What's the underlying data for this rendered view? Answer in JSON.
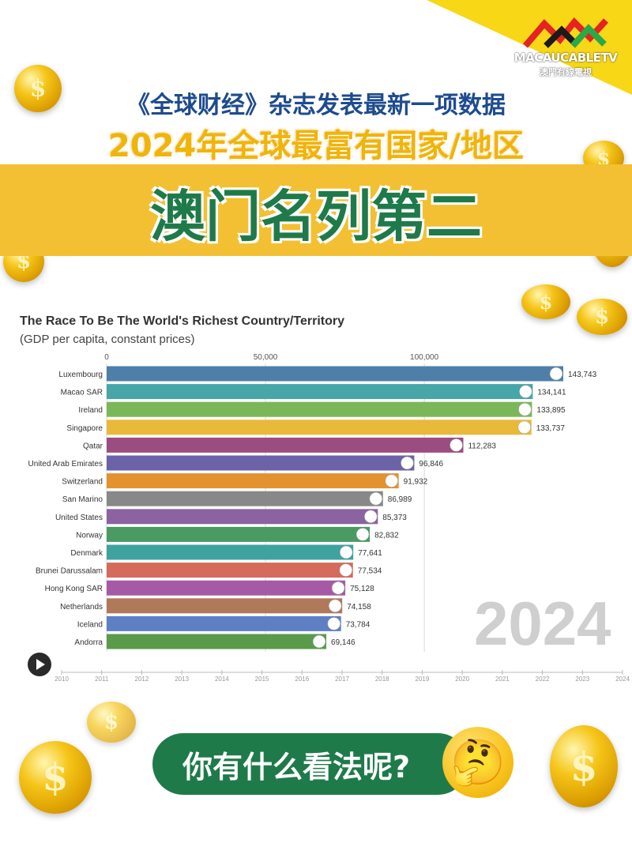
{
  "logo": {
    "brand": "MACAUCABLETV",
    "subtitle": "澳門有線電視",
    "colors": [
      "#e52322",
      "#1b1b1b",
      "#2aa84a"
    ]
  },
  "headline": {
    "line1": "《全球财经》杂志发表最新一项数据",
    "line2": "2024年全球最富有国家/地区",
    "line3": "澳门名列第二"
  },
  "chart_data": {
    "type": "bar",
    "orientation": "horizontal",
    "title": "The Race To Be The World's Richest Country/Territory",
    "subtitle": "(GDP per capita, constant prices)",
    "xlim": [
      0,
      150000
    ],
    "x_ticks": [
      "0",
      "50,000",
      "100,000"
    ],
    "x_tick_values": [
      0,
      50000,
      100000
    ],
    "grid": true,
    "categories": [
      "Luxembourg",
      "Macao SAR",
      "Ireland",
      "Singapore",
      "Qatar",
      "United Arab Emirates",
      "Switzerland",
      "San Marino",
      "United States",
      "Norway",
      "Denmark",
      "Brunei Darussalam",
      "Hong Kong SAR",
      "Netherlands",
      "Iceland",
      "Andorra"
    ],
    "values": [
      143743,
      134141,
      133895,
      133737,
      112283,
      96846,
      91932,
      86989,
      85373,
      82832,
      77641,
      77534,
      75128,
      74158,
      73784,
      69146
    ],
    "value_labels": [
      "143,743",
      "134,141",
      "133,895",
      "133,737",
      "112,283",
      "96,846",
      "91,932",
      "86,989",
      "85,373",
      "82,832",
      "77,641",
      "77,534",
      "75,128",
      "74,158",
      "73,784",
      "69,146"
    ],
    "colors": [
      "#4f7fa8",
      "#46a6a8",
      "#7cb65a",
      "#e9b93a",
      "#9c4d80",
      "#6b62a8",
      "#e2922e",
      "#888888",
      "#8b63a1",
      "#4a9a62",
      "#3ea39e",
      "#d46b5c",
      "#a55aa6",
      "#b0795a",
      "#5f7fc4",
      "#5a9a4a"
    ],
    "year": "2024",
    "timeline": [
      "2010",
      "2011",
      "2012",
      "2013",
      "2014",
      "2015",
      "2016",
      "2017",
      "2018",
      "2019",
      "2020",
      "2021",
      "2022",
      "2023",
      "2024"
    ]
  },
  "question": "你有什么看法呢?",
  "emoji": "🤔"
}
